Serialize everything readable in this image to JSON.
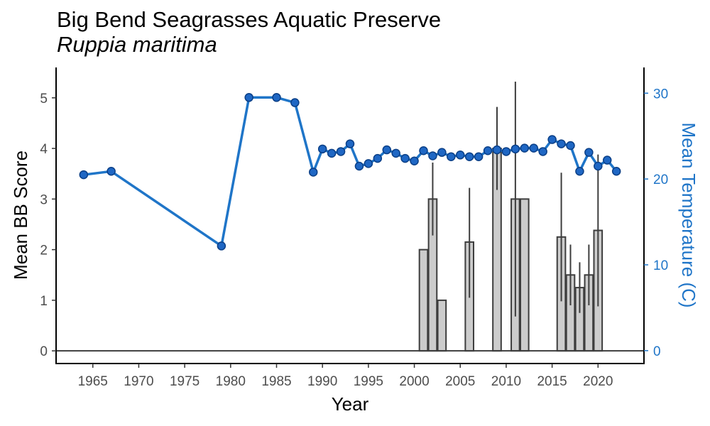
{
  "chart_data": {
    "type": "bar",
    "title": "Big Bend Seagrasses Aquatic Preserve",
    "subtitle": "Ruppia maritima",
    "xlabel": "Year",
    "ylabel": "Mean BB Score",
    "y2label": "Mean Temperature (C)",
    "xlim": [
      1961,
      2025
    ],
    "ylim": [
      -0.25,
      5.6
    ],
    "y2lim": [
      -1.5,
      33
    ],
    "xticks": [
      1965,
      1970,
      1975,
      1980,
      1985,
      1990,
      1995,
      2000,
      2005,
      2010,
      2015,
      2020
    ],
    "yticks": [
      0,
      1,
      2,
      3,
      4,
      5
    ],
    "y2ticks": [
      0,
      10,
      20,
      30
    ],
    "grid": false,
    "colors": {
      "bar_fill": "#cccccc",
      "bar_stroke": "#3d3d3d",
      "line": "#1f75c8",
      "point_fill": "#1f67c4",
      "point_stroke": "#0b3f86",
      "right_axis": "#1f75c8",
      "error_bar": "#3d3d3d"
    },
    "bb_score": {
      "name": "Mean BB Score",
      "points": [
        {
          "x": 2001,
          "y": 2.0
        },
        {
          "x": 2002,
          "y": 3.0,
          "lo": 2.28,
          "hi": 3.72
        },
        {
          "x": 2003,
          "y": 1.0
        },
        {
          "x": 2006,
          "y": 2.15,
          "lo": 1.05,
          "hi": 3.22
        },
        {
          "x": 2009,
          "y": 4.0,
          "lo": 3.18,
          "hi": 4.82
        },
        {
          "x": 2011,
          "y": 3.0,
          "lo": 0.68,
          "hi": 5.32
        },
        {
          "x": 2012,
          "y": 3.0
        },
        {
          "x": 2016,
          "y": 2.25,
          "lo": 0.98,
          "hi": 3.52
        },
        {
          "x": 2017,
          "y": 1.5,
          "lo": 0.9,
          "hi": 2.1
        },
        {
          "x": 2018,
          "y": 1.25,
          "lo": 0.75,
          "hi": 1.75
        },
        {
          "x": 2019,
          "y": 1.5,
          "lo": 0.9,
          "hi": 2.1
        },
        {
          "x": 2020,
          "y": 2.38,
          "lo": 0.88,
          "hi": 3.88
        }
      ]
    },
    "temperature": {
      "name": "Mean Temperature (C)",
      "x": [
        1964,
        1967,
        1979,
        1982,
        1985,
        1987,
        1989,
        1990,
        1991,
        1992,
        1993,
        1994,
        1995,
        1996,
        1997,
        1998,
        1999,
        2000,
        2001,
        2002,
        2003,
        2004,
        2005,
        2006,
        2007,
        2008,
        2009,
        2010,
        2011,
        2012,
        2013,
        2014,
        2015,
        2016,
        2017,
        2018,
        2019,
        2020,
        2021,
        2022
      ],
      "y": [
        20.5,
        20.9,
        12.2,
        29.5,
        29.5,
        28.9,
        20.8,
        23.5,
        23.0,
        23.2,
        24.1,
        21.5,
        21.8,
        22.4,
        23.4,
        23.0,
        22.4,
        22.1,
        23.3,
        22.7,
        23.1,
        22.6,
        22.8,
        22.6,
        22.6,
        23.3,
        23.4,
        23.2,
        23.5,
        23.6,
        23.6,
        23.2,
        24.6,
        24.1,
        23.9,
        20.9,
        23.1,
        21.5,
        22.2,
        20.9
      ]
    }
  }
}
